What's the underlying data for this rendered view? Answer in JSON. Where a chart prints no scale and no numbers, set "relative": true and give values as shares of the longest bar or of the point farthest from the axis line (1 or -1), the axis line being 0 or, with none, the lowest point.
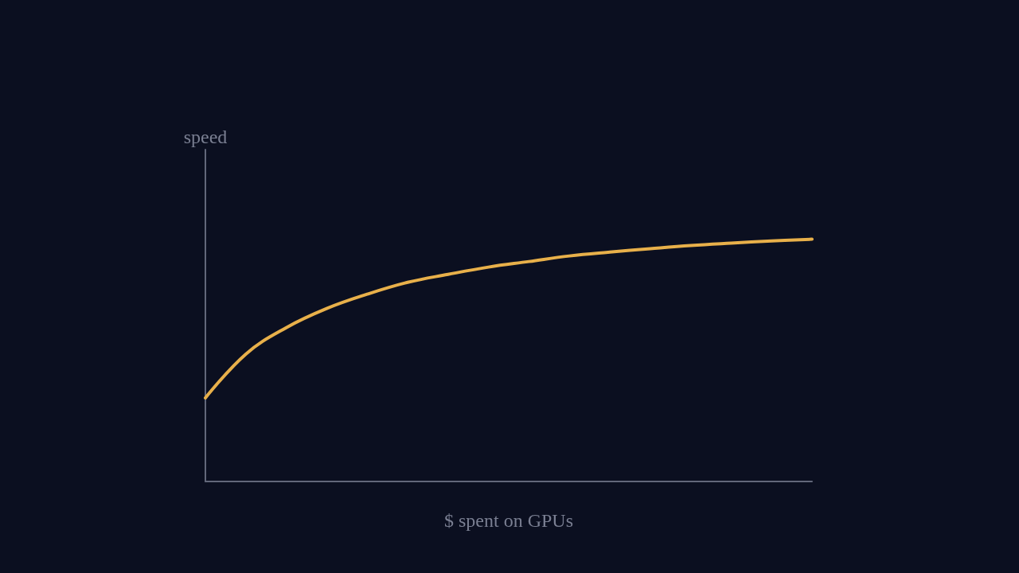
{
  "chart_data": {
    "type": "line",
    "relative": true,
    "xlabel": "$ spent on GPUs",
    "ylabel": "speed",
    "categories": [
      null,
      null,
      null,
      null,
      null,
      null,
      null,
      null,
      null,
      null,
      null,
      null,
      null,
      null,
      null,
      null
    ],
    "series": [
      {
        "color": "#e8b04a",
        "values": [
          0.345,
          0.526,
          0.635,
          0.714,
          0.773,
          0.822,
          0.855,
          0.885,
          0.908,
          0.931,
          0.947,
          0.961,
          0.974,
          0.984,
          0.993,
          1
        ]
      }
    ],
    "grid": false,
    "marker": "none",
    "line_style": "solid"
  }
}
